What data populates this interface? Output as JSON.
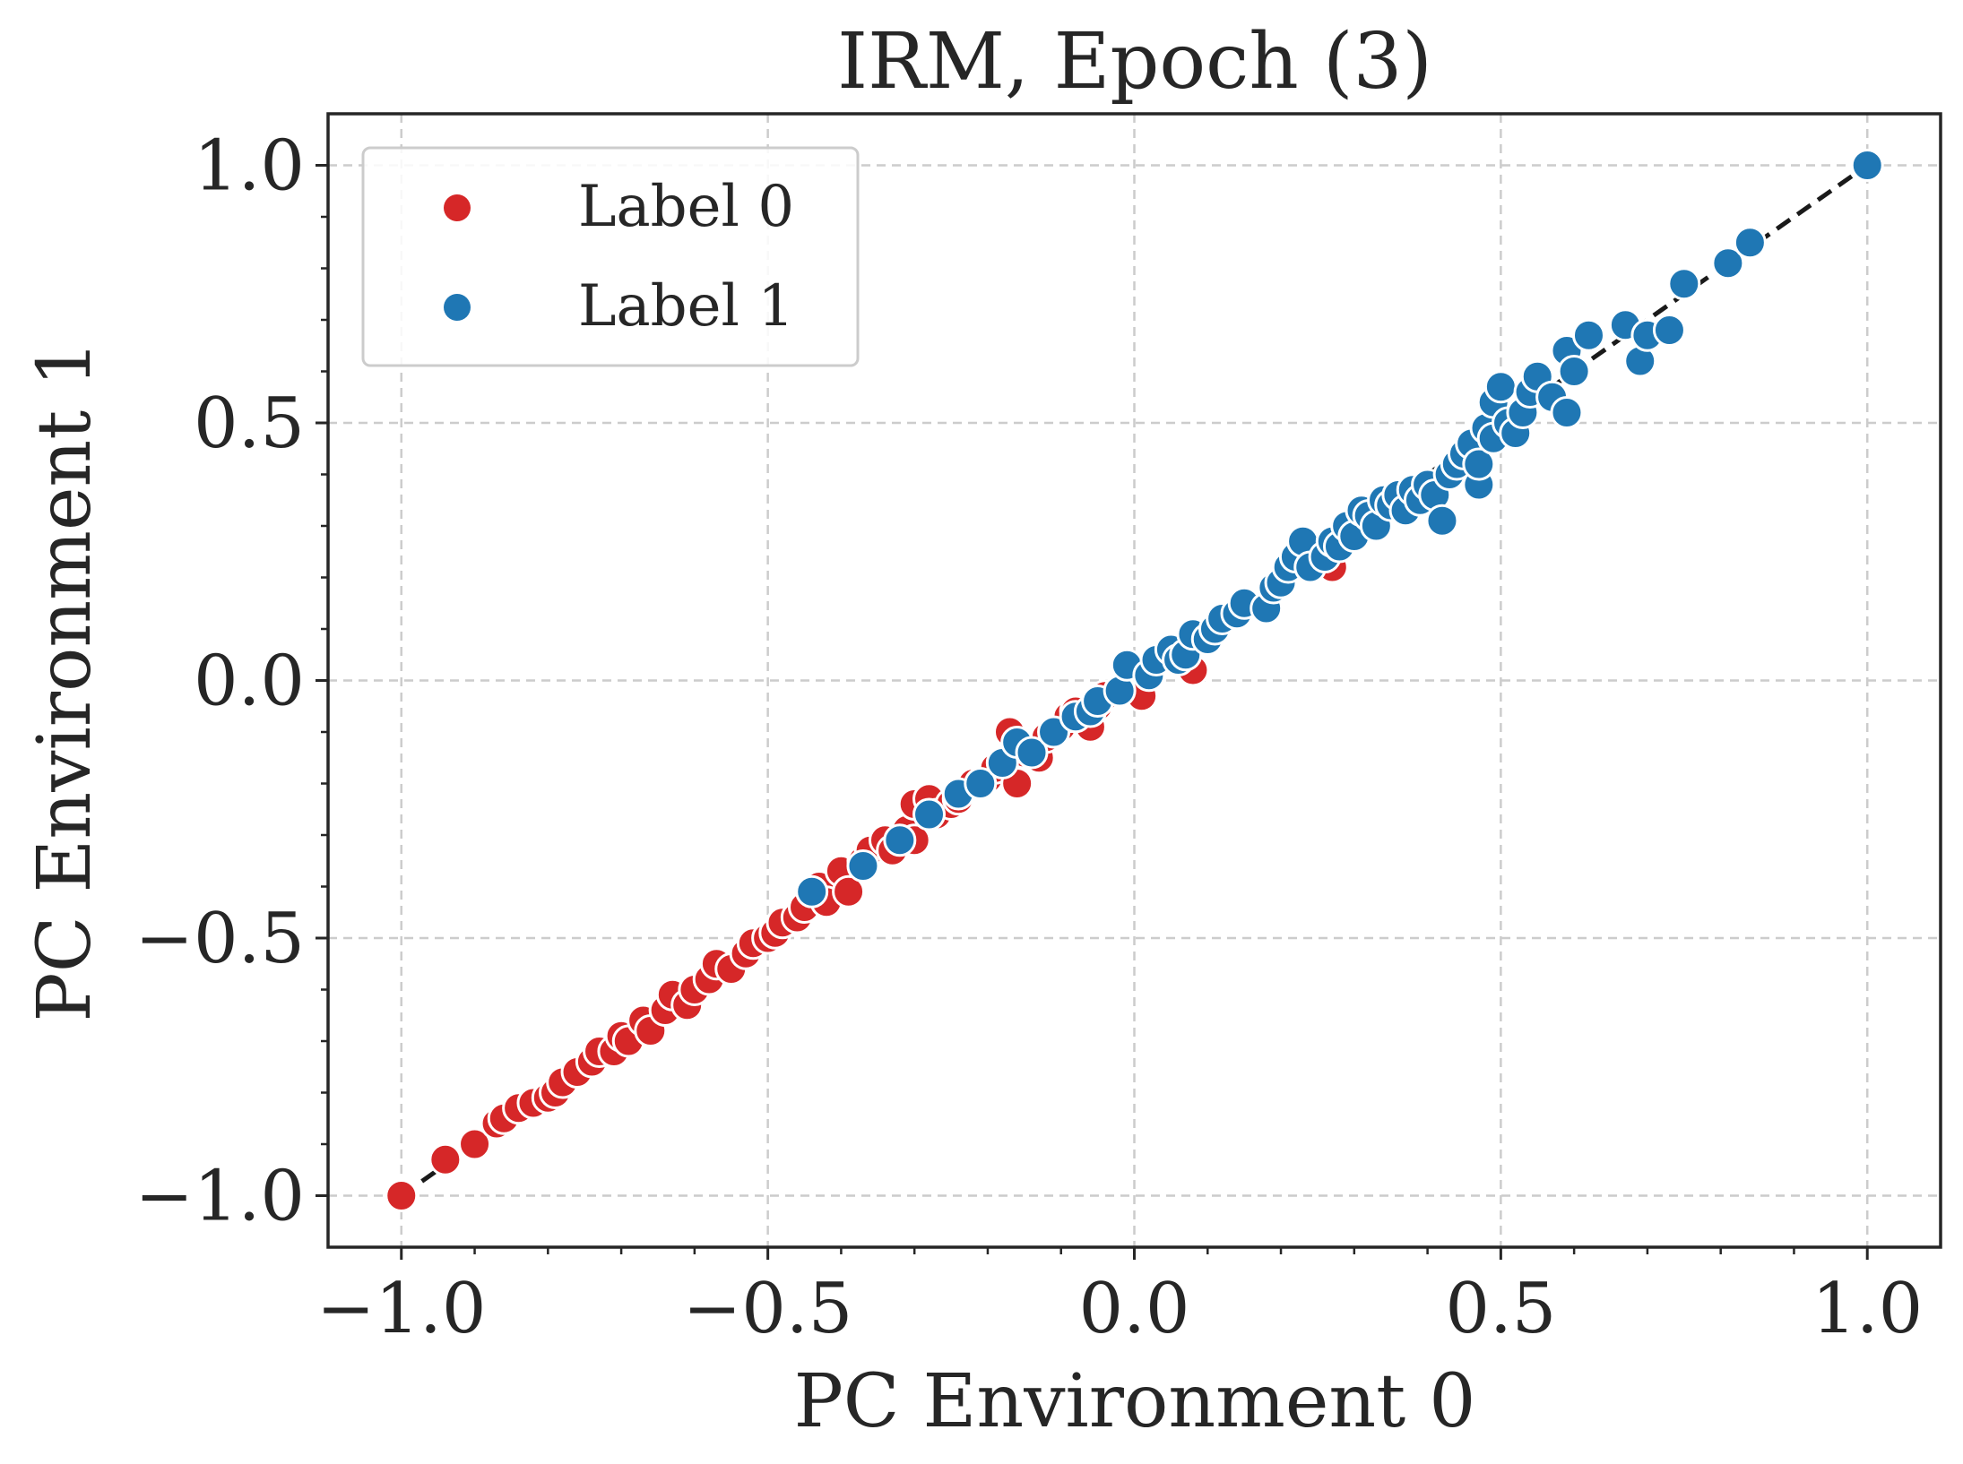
{
  "chart_data": {
    "type": "scatter",
    "title": "IRM, Epoch (3)",
    "xlabel": "PC Environment 0",
    "ylabel": "PC Environment 1",
    "xlim": [
      -1.1,
      1.1
    ],
    "ylim": [
      -1.1,
      1.1
    ],
    "xticks": [
      -1.0,
      -0.5,
      0.0,
      0.5,
      1.0
    ],
    "yticks": [
      -1.0,
      -0.5,
      0.0,
      0.5,
      1.0
    ],
    "xtick_labels": [
      "−1.0",
      "−0.5",
      "0.0",
      "0.5",
      "1.0"
    ],
    "ytick_labels": [
      "−1.0",
      "−0.5",
      "0.0",
      "0.5",
      "1.0"
    ],
    "grid": true,
    "legend_position": "top-left",
    "reference_line": {
      "x": [
        -1.0,
        1.0
      ],
      "y": [
        -1.0,
        1.0
      ],
      "style": "dashed",
      "color": "#1a1a1a"
    },
    "series": [
      {
        "name": "Label 0",
        "color": "#d62728",
        "points": [
          [
            -1.0,
            -1.0
          ],
          [
            -0.94,
            -0.93
          ],
          [
            -0.9,
            -0.9
          ],
          [
            -0.87,
            -0.86
          ],
          [
            -0.86,
            -0.85
          ],
          [
            -0.84,
            -0.83
          ],
          [
            -0.82,
            -0.82
          ],
          [
            -0.8,
            -0.81
          ],
          [
            -0.79,
            -0.8
          ],
          [
            -0.78,
            -0.78
          ],
          [
            -0.76,
            -0.76
          ],
          [
            -0.74,
            -0.74
          ],
          [
            -0.73,
            -0.72
          ],
          [
            -0.71,
            -0.72
          ],
          [
            -0.7,
            -0.69
          ],
          [
            -0.69,
            -0.7
          ],
          [
            -0.67,
            -0.66
          ],
          [
            -0.66,
            -0.68
          ],
          [
            -0.64,
            -0.64
          ],
          [
            -0.63,
            -0.61
          ],
          [
            -0.61,
            -0.63
          ],
          [
            -0.6,
            -0.6
          ],
          [
            -0.58,
            -0.58
          ],
          [
            -0.57,
            -0.55
          ],
          [
            -0.55,
            -0.56
          ],
          [
            -0.53,
            -0.53
          ],
          [
            -0.52,
            -0.51
          ],
          [
            -0.5,
            -0.5
          ],
          [
            -0.49,
            -0.49
          ],
          [
            -0.48,
            -0.47
          ],
          [
            -0.46,
            -0.46
          ],
          [
            -0.45,
            -0.44
          ],
          [
            -0.43,
            -0.4
          ],
          [
            -0.42,
            -0.43
          ],
          [
            -0.4,
            -0.37
          ],
          [
            -0.39,
            -0.41
          ],
          [
            -0.37,
            -0.35
          ],
          [
            -0.36,
            -0.33
          ],
          [
            -0.34,
            -0.31
          ],
          [
            -0.33,
            -0.33
          ],
          [
            -0.31,
            -0.29
          ],
          [
            -0.3,
            -0.31
          ],
          [
            -0.3,
            -0.24
          ],
          [
            -0.28,
            -0.23
          ],
          [
            -0.27,
            -0.26
          ],
          [
            -0.25,
            -0.24
          ],
          [
            -0.24,
            -0.23
          ],
          [
            -0.22,
            -0.2
          ],
          [
            -0.2,
            -0.19
          ],
          [
            -0.19,
            -0.17
          ],
          [
            -0.17,
            -0.1
          ],
          [
            -0.16,
            -0.2
          ],
          [
            -0.15,
            -0.14
          ],
          [
            -0.13,
            -0.15
          ],
          [
            -0.12,
            -0.11
          ],
          [
            -0.1,
            -0.09
          ],
          [
            -0.09,
            -0.07
          ],
          [
            -0.08,
            -0.06
          ],
          [
            -0.06,
            -0.09
          ],
          [
            -0.05,
            -0.05
          ],
          [
            -0.04,
            -0.03
          ],
          [
            -0.02,
            -0.02
          ],
          [
            0.01,
            -0.03
          ],
          [
            0.08,
            0.02
          ],
          [
            0.27,
            0.22
          ],
          [
            0.26,
            0.25
          ]
        ]
      },
      {
        "name": "Label 1",
        "color": "#1f77b4",
        "points": [
          [
            -0.44,
            -0.41
          ],
          [
            -0.37,
            -0.36
          ],
          [
            -0.32,
            -0.31
          ],
          [
            -0.28,
            -0.26
          ],
          [
            -0.24,
            -0.22
          ],
          [
            -0.21,
            -0.2
          ],
          [
            -0.18,
            -0.16
          ],
          [
            -0.16,
            -0.12
          ],
          [
            -0.14,
            -0.14
          ],
          [
            -0.11,
            -0.1
          ],
          [
            -0.08,
            -0.07
          ],
          [
            -0.06,
            -0.06
          ],
          [
            -0.05,
            -0.04
          ],
          [
            -0.02,
            -0.02
          ],
          [
            -0.01,
            0.03
          ],
          [
            0.02,
            0.01
          ],
          [
            0.03,
            0.04
          ],
          [
            0.05,
            0.06
          ],
          [
            0.06,
            0.04
          ],
          [
            0.07,
            0.05
          ],
          [
            0.08,
            0.09
          ],
          [
            0.1,
            0.08
          ],
          [
            0.11,
            0.1
          ],
          [
            0.12,
            0.12
          ],
          [
            0.14,
            0.13
          ],
          [
            0.15,
            0.15
          ],
          [
            0.18,
            0.14
          ],
          [
            0.19,
            0.18
          ],
          [
            0.2,
            0.19
          ],
          [
            0.21,
            0.22
          ],
          [
            0.22,
            0.24
          ],
          [
            0.23,
            0.27
          ],
          [
            0.24,
            0.22
          ],
          [
            0.26,
            0.24
          ],
          [
            0.27,
            0.27
          ],
          [
            0.28,
            0.26
          ],
          [
            0.29,
            0.3
          ],
          [
            0.3,
            0.28
          ],
          [
            0.31,
            0.33
          ],
          [
            0.32,
            0.32
          ],
          [
            0.33,
            0.3
          ],
          [
            0.34,
            0.35
          ],
          [
            0.35,
            0.34
          ],
          [
            0.36,
            0.36
          ],
          [
            0.37,
            0.33
          ],
          [
            0.38,
            0.37
          ],
          [
            0.39,
            0.35
          ],
          [
            0.4,
            0.38
          ],
          [
            0.41,
            0.36
          ],
          [
            0.42,
            0.31
          ],
          [
            0.43,
            0.4
          ],
          [
            0.44,
            0.42
          ],
          [
            0.45,
            0.44
          ],
          [
            0.46,
            0.46
          ],
          [
            0.47,
            0.38
          ],
          [
            0.47,
            0.42
          ],
          [
            0.48,
            0.49
          ],
          [
            0.49,
            0.47
          ],
          [
            0.49,
            0.54
          ],
          [
            0.5,
            0.57
          ],
          [
            0.51,
            0.5
          ],
          [
            0.52,
            0.48
          ],
          [
            0.53,
            0.52
          ],
          [
            0.54,
            0.56
          ],
          [
            0.55,
            0.59
          ],
          [
            0.57,
            0.55
          ],
          [
            0.59,
            0.52
          ],
          [
            0.59,
            0.64
          ],
          [
            0.6,
            0.6
          ],
          [
            0.62,
            0.67
          ],
          [
            0.67,
            0.69
          ],
          [
            0.69,
            0.62
          ],
          [
            0.7,
            0.67
          ],
          [
            0.73,
            0.68
          ],
          [
            0.75,
            0.77
          ],
          [
            0.81,
            0.81
          ],
          [
            0.84,
            0.85
          ],
          [
            1.0,
            1.0
          ]
        ]
      }
    ]
  }
}
